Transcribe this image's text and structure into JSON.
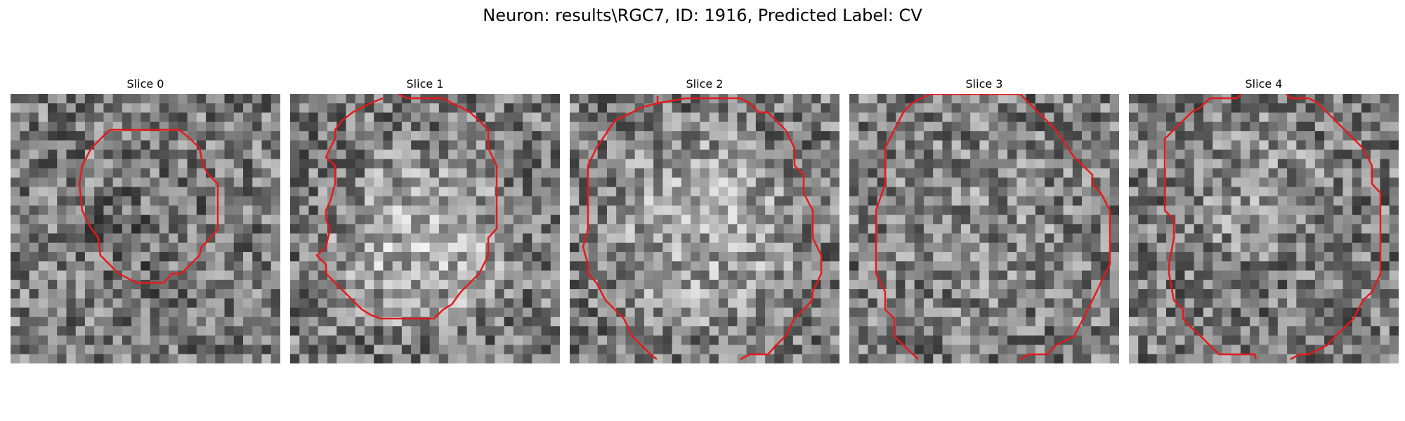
{
  "figure": {
    "title": "Neuron: results\\RGC7, ID: 1916, Predicted Label: CV"
  },
  "slices": [
    {
      "title": "Slice 0",
      "seed": 11,
      "blob": [
        0.5,
        0.55,
        0.33,
        -0.05
      ]
    },
    {
      "title": "Slice 1",
      "seed": 23,
      "blob": [
        0.5,
        0.55,
        0.4,
        0.22
      ]
    },
    {
      "title": "Slice 2",
      "seed": 37,
      "blob": [
        0.5,
        0.5,
        0.45,
        0.18
      ]
    },
    {
      "title": "Slice 3",
      "seed": 41,
      "blob": [
        0.5,
        0.5,
        0.45,
        0.06
      ]
    },
    {
      "title": "Slice 4",
      "seed": 53,
      "blob": [
        0.45,
        0.35,
        0.3,
        0.1
      ]
    }
  ],
  "contour_color": "#e41a1c"
}
